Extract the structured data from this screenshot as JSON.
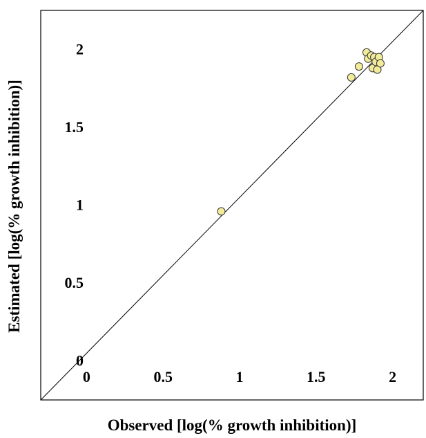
{
  "chart_data": {
    "type": "scatter",
    "title": "",
    "xlabel": "Observed [log(% growth inhibition)]",
    "ylabel": "Estimated [log(% growth inhibition)]",
    "xlim": [
      -0.25,
      2.25
    ],
    "ylim": [
      -0.25,
      2.25
    ],
    "x_ticks": [
      0,
      0.5,
      1,
      1.5,
      2
    ],
    "x_tick_labels": [
      "0",
      "0.5",
      "1",
      "1.5",
      "2"
    ],
    "y_ticks": [
      0,
      0.5,
      1,
      1.5,
      2
    ],
    "y_tick_labels": [
      "0",
      "0.5",
      "1",
      "1.5",
      "2"
    ],
    "grid": false,
    "reference_line": "y = x",
    "marker_color": "#f2ec9a",
    "marker_edge_color": "#333333",
    "points": [
      {
        "x": 0.93,
        "y": 0.96
      },
      {
        "x": 1.78,
        "y": 1.82
      },
      {
        "x": 1.83,
        "y": 1.89
      },
      {
        "x": 1.88,
        "y": 1.98
      },
      {
        "x": 1.89,
        "y": 1.94
      },
      {
        "x": 1.91,
        "y": 1.96
      },
      {
        "x": 1.92,
        "y": 1.88
      },
      {
        "x": 1.93,
        "y": 1.95
      },
      {
        "x": 1.94,
        "y": 1.92
      },
      {
        "x": 1.95,
        "y": 1.87
      },
      {
        "x": 1.96,
        "y": 1.95
      },
      {
        "x": 1.97,
        "y": 1.91
      }
    ]
  }
}
